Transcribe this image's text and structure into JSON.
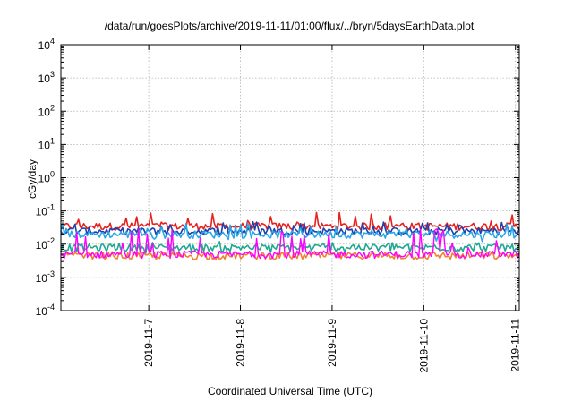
{
  "chart_data": {
    "type": "line",
    "title": "/data/run/goesPlots/archive/2019-11-11/01:00/flux/../bryn/5daysEarthData.plot",
    "xlabel": "Coordinated Universal Time (UTC)",
    "ylabel": "cGy/day",
    "yscale": "log",
    "ylim": [
      0.0001,
      10000
    ],
    "xlim": [
      "2019-11-06 01:00",
      "2019-11-11 01:00"
    ],
    "grid": true,
    "legend": "none",
    "y_ticks": [
      {
        "base": "10",
        "exp": "-4"
      },
      {
        "base": "10",
        "exp": "-3"
      },
      {
        "base": "10",
        "exp": "-2"
      },
      {
        "base": "10",
        "exp": "-1"
      },
      {
        "base": "10",
        "exp": "0"
      },
      {
        "base": "10",
        "exp": "1"
      },
      {
        "base": "10",
        "exp": "2"
      },
      {
        "base": "10",
        "exp": "3"
      },
      {
        "base": "10",
        "exp": "4"
      }
    ],
    "x_ticks": [
      "2019-11-7",
      "2019-11-8",
      "2019-11-9",
      "2019-11-10",
      "2019-11-11"
    ],
    "series": [
      {
        "color": "#e8201c",
        "typical": 0.035,
        "min": 0.025,
        "max": 0.09
      },
      {
        "color": "#1f3fae",
        "typical": 0.025,
        "min": 0.018,
        "max": 0.05
      },
      {
        "color": "#2aa7e6",
        "typical": 0.02,
        "min": 0.012,
        "max": 0.045
      },
      {
        "color": "#1ea890",
        "typical": 0.008,
        "min": 0.005,
        "max": 0.012
      },
      {
        "color": "#f08030",
        "typical": 0.0045,
        "min": 0.0035,
        "max": 0.006
      },
      {
        "color": "#ff00ff",
        "typical": 0.005,
        "min": 0.0035,
        "max": 0.03
      }
    ]
  }
}
